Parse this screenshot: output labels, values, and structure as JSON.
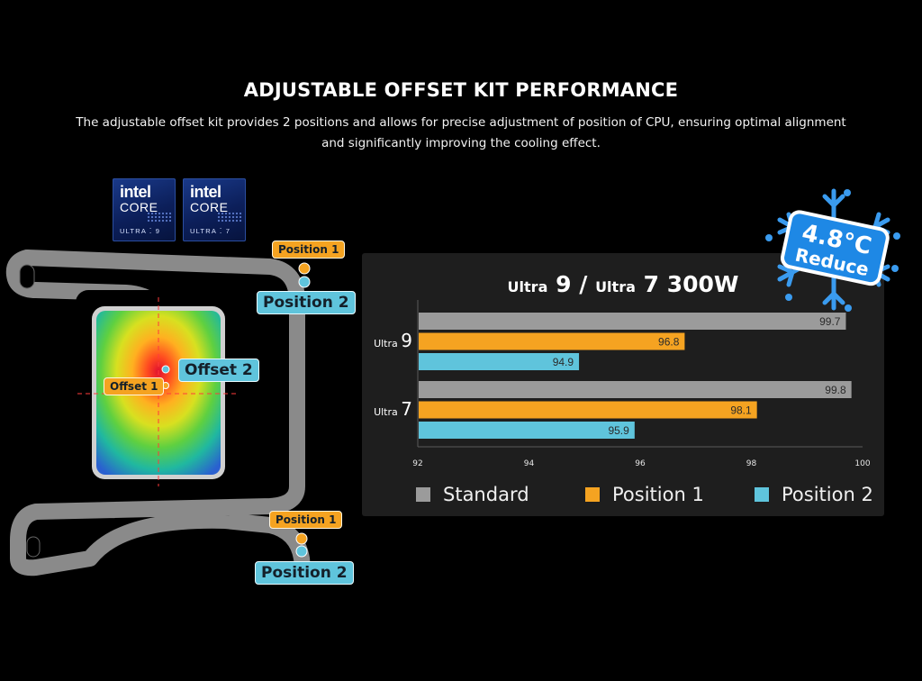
{
  "header": {
    "title": "ADJUSTABLE OFFSET KIT PERFORMANCE",
    "subtitle_line1": "The adjustable offset kit provides 2 positions and allows for precise adjustment of position of CPU, ensuring optimal alignment",
    "subtitle_line2": "and significantly improving the cooling effect."
  },
  "intel_badges": [
    {
      "brand": "intel",
      "line": "CORE",
      "tier": "ULTRA",
      "number": "9"
    },
    {
      "brand": "intel",
      "line": "CORE",
      "tier": "ULTRA",
      "number": "7"
    }
  ],
  "diagram": {
    "top_position_1": "Position 1",
    "top_position_2": "Position 2",
    "offset_1": "Offset 1",
    "offset_2": "Offset 2",
    "bottom_position_1": "Position 1",
    "bottom_position_2": "Position 2"
  },
  "reduce_badge": {
    "value": "4.8°C",
    "label": "Reduce"
  },
  "colors": {
    "standard": "#9b9b9b",
    "position1": "#f5a321",
    "position2": "#5fc4dc",
    "panel": "#1e1e1e"
  },
  "chart_data": {
    "type": "bar",
    "orientation": "horizontal",
    "title_prefix_1": "Ultra",
    "title_num_1": "9",
    "title_sep": "/",
    "title_prefix_2": "Ultra",
    "title_num_2": "7 300W",
    "categories": [
      {
        "prefix": "Ultra",
        "num": "9"
      },
      {
        "prefix": "Ultra",
        "num": "7"
      }
    ],
    "series": [
      {
        "name": "Standard",
        "values": [
          99.7,
          99.8
        ],
        "color": "#9b9b9b"
      },
      {
        "name": "Position 1",
        "values": [
          96.8,
          98.1
        ],
        "color": "#f5a321"
      },
      {
        "name": "Position 2",
        "values": [
          94.9,
          95.9
        ],
        "color": "#5fc4dc"
      }
    ],
    "xlim": [
      92,
      100
    ],
    "xticks": [
      92,
      94,
      96,
      98,
      100
    ],
    "grid": false,
    "legend_position": "bottom"
  }
}
